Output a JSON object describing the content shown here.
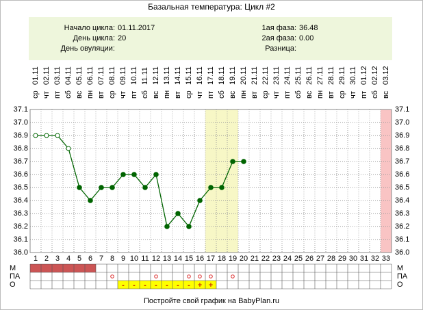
{
  "title": "Базальная температура: Цикл #2",
  "info": {
    "left": [
      {
        "label": "Начало цикла:",
        "value": "01.11.2017"
      },
      {
        "label": "День цикла:",
        "value": "20"
      },
      {
        "label": "День овуляции:"
      }
    ],
    "right": [
      {
        "label": "1ая фаза:",
        "value": "36.48"
      },
      {
        "label": "2ая фаза:",
        "value": "0.00"
      },
      {
        "label": "Разница:"
      }
    ]
  },
  "chart_data": {
    "type": "line",
    "days": [
      1,
      2,
      3,
      4,
      5,
      6,
      7,
      8,
      9,
      10,
      11,
      12,
      13,
      14,
      15,
      16,
      17,
      18,
      19,
      20,
      21,
      22,
      23,
      24,
      25,
      26,
      27,
      28,
      29,
      30,
      31,
      32,
      33
    ],
    "weekdays": [
      "ср",
      "чт",
      "пт",
      "сб",
      "вс",
      "пн",
      "вт",
      "ср",
      "чт",
      "пт",
      "сб",
      "вс",
      "пн",
      "вт",
      "ср",
      "чт",
      "пт",
      "сб",
      "вс",
      "пн",
      "вт",
      "ср",
      "чт",
      "пт",
      "сб",
      "вс",
      "пн",
      "вт",
      "ср",
      "чт",
      "пт",
      "сб",
      "вс"
    ],
    "dates": [
      "01.11",
      "02.11",
      "03.11",
      "04.11",
      "05.11",
      "06.11",
      "07.11",
      "08.11",
      "09.11",
      "10.11",
      "11.11",
      "12.11",
      "13.11",
      "14.11",
      "15.11",
      "16.11",
      "17.11",
      "18.11",
      "19.11",
      "20.11",
      "21.11",
      "22.11",
      "23.11",
      "24.11",
      "25.11",
      "26.11",
      "27.11",
      "28.11",
      "29.11",
      "30.11",
      "01.12",
      "02.12",
      "03.12"
    ],
    "values": [
      36.9,
      36.9,
      36.9,
      36.8,
      36.5,
      36.4,
      36.5,
      36.5,
      36.6,
      36.6,
      36.5,
      36.6,
      36.2,
      36.3,
      36.2,
      36.4,
      36.5,
      36.5,
      36.7,
      36.7,
      null,
      null,
      null,
      null,
      null,
      null,
      null,
      null,
      null,
      null,
      null,
      null,
      null
    ],
    "open_points": [
      true,
      true,
      true,
      true,
      false,
      false,
      false,
      false,
      false,
      false,
      false,
      false,
      false,
      false,
      false,
      false,
      false,
      false,
      false,
      false,
      false,
      false,
      false,
      false,
      false,
      false,
      false,
      false,
      false,
      false,
      false,
      false,
      false
    ],
    "color": "#006400",
    "ylim": [
      36.0,
      37.1
    ],
    "yticks": [
      {
        "value": 36.0,
        "label": "36.0"
      },
      36.1,
      36.2,
      36.3,
      36.4,
      36.5,
      36.6,
      36.7,
      36.8,
      36.9,
      {
        "value": 37.0,
        "label": "37.0"
      },
      37.1
    ],
    "grid": true,
    "highlight_days": [
      17,
      18,
      19
    ],
    "highlight_color": "#f7f7c6",
    "pink_days": [
      33
    ],
    "pink_color": "#f9c4c4",
    "rows": [
      {
        "label": "М",
        "filled_days": [
          1,
          2,
          3,
          4,
          5,
          6
        ],
        "fill": "#cc5555"
      },
      {
        "label": "ПА",
        "circle_days": [
          8,
          12,
          15,
          16,
          17,
          19
        ]
      },
      {
        "label": "О",
        "filled_days": [
          9,
          10,
          11,
          12,
          13,
          14,
          15,
          16,
          17
        ],
        "fill": "#ffff00",
        "texts": [
          {
            "day": 9,
            "text": "-"
          },
          {
            "day": 10,
            "text": "-"
          },
          {
            "day": 11,
            "text": "-"
          },
          {
            "day": 12,
            "text": "-"
          },
          {
            "day": 13,
            "text": "-"
          },
          {
            "day": 14,
            "text": "-"
          },
          {
            "day": 15,
            "text": "-"
          },
          {
            "day": 16,
            "text": "+"
          },
          {
            "day": 17,
            "text": "+"
          }
        ]
      }
    ]
  },
  "footer": "Постройте свой график на BabyPlan.ru"
}
